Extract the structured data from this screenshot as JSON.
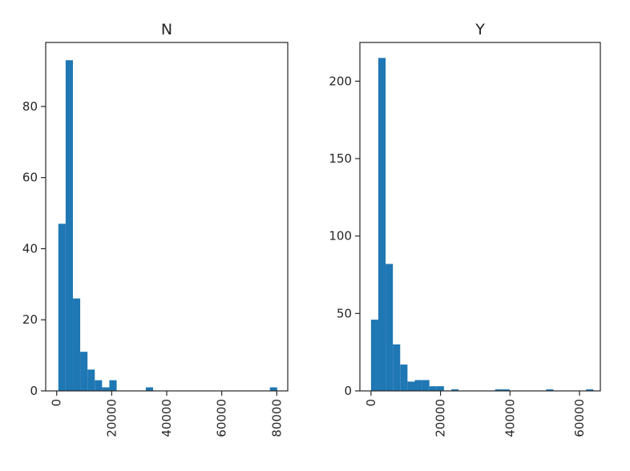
{
  "chart_data": [
    {
      "type": "bar",
      "title": "N",
      "xlabel": "",
      "ylabel": "",
      "xlim": [
        -4000,
        84000
      ],
      "ylim": [
        0,
        98
      ],
      "xticks": [
        0,
        20000,
        40000,
        60000,
        80000
      ],
      "yticks": [
        0,
        20,
        40,
        60,
        80
      ],
      "grid": false,
      "bin_width": 2650,
      "bins": [
        {
          "x0": 600,
          "x1": 3250,
          "count": 47
        },
        {
          "x0": 3250,
          "x1": 5900,
          "count": 93
        },
        {
          "x0": 5900,
          "x1": 8550,
          "count": 26
        },
        {
          "x0": 8550,
          "x1": 11200,
          "count": 11
        },
        {
          "x0": 11200,
          "x1": 13850,
          "count": 6
        },
        {
          "x0": 13850,
          "x1": 16500,
          "count": 3
        },
        {
          "x0": 16500,
          "x1": 19150,
          "count": 1
        },
        {
          "x0": 19150,
          "x1": 21800,
          "count": 3
        },
        {
          "x0": 32400,
          "x1": 35050,
          "count": 1
        },
        {
          "x0": 77500,
          "x1": 80150,
          "count": 1
        }
      ]
    },
    {
      "type": "bar",
      "title": "Y",
      "xlabel": "",
      "ylabel": "",
      "xlim": [
        -3200,
        66000
      ],
      "ylim": [
        0,
        225
      ],
      "xticks": [
        0,
        20000,
        40000,
        60000
      ],
      "yticks": [
        0,
        50,
        100,
        150,
        200
      ],
      "grid": false,
      "bin_width": 2100,
      "bins": [
        {
          "x0": 0,
          "x1": 2100,
          "count": 46
        },
        {
          "x0": 2100,
          "x1": 4200,
          "count": 215
        },
        {
          "x0": 4200,
          "x1": 6300,
          "count": 82
        },
        {
          "x0": 6300,
          "x1": 8400,
          "count": 30
        },
        {
          "x0": 8400,
          "x1": 10500,
          "count": 17
        },
        {
          "x0": 10500,
          "x1": 12600,
          "count": 6
        },
        {
          "x0": 12600,
          "x1": 14700,
          "count": 7
        },
        {
          "x0": 14700,
          "x1": 16800,
          "count": 7
        },
        {
          "x0": 16800,
          "x1": 18900,
          "count": 3
        },
        {
          "x0": 18900,
          "x1": 21000,
          "count": 3
        },
        {
          "x0": 23100,
          "x1": 25200,
          "count": 1
        },
        {
          "x0": 35700,
          "x1": 37800,
          "count": 1
        },
        {
          "x0": 37800,
          "x1": 39900,
          "count": 1
        },
        {
          "x0": 50400,
          "x1": 52500,
          "count": 1
        },
        {
          "x0": 61900,
          "x1": 64000,
          "count": 1
        }
      ]
    }
  ]
}
